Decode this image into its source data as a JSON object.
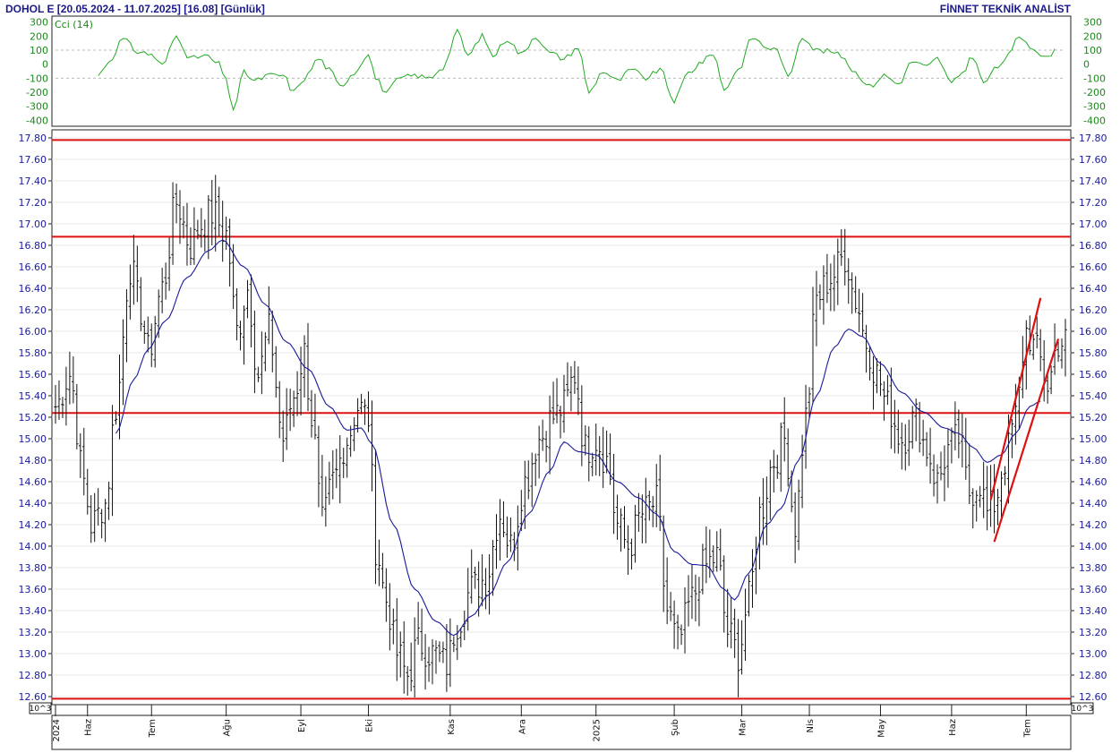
{
  "header": {
    "ticker_info": "DOHOL E  [20.05.2024 - 11.07.2025]  [16.08]  [Günlük]",
    "brand": "FİNNET TEKNİK ANALİST"
  },
  "indicator": {
    "label": "Cci (14)",
    "ticks": [
      "300",
      "200",
      "100",
      "0",
      "-100",
      "-200",
      "-300",
      "-400"
    ],
    "tick_values": [
      300,
      200,
      100,
      0,
      -100,
      -200,
      -300,
      -400
    ],
    "color": "#22aa22"
  },
  "unit_label": "10^3",
  "colors": {
    "price_bars": "#111111",
    "moving_average": "#1a1a9a",
    "levels": "#dd1111",
    "channel": "#dd1111",
    "grid": "#e8e8e8",
    "axis_text": "#1a1aa0"
  },
  "chart_data": {
    "type": "bar",
    "title": "DOHOL E",
    "date_range": "20.05.2024 - 11.07.2025",
    "interval": "Günlük",
    "last_close": 16.08,
    "y_ticks": [
      "17.80",
      "17.60",
      "17.40",
      "17.20",
      "17.00",
      "16.80",
      "16.60",
      "16.40",
      "16.20",
      "16.00",
      "15.80",
      "15.60",
      "15.40",
      "15.20",
      "15.00",
      "14.80",
      "14.60",
      "14.40",
      "14.20",
      "14.00",
      "13.80",
      "13.60",
      "13.40",
      "13.20",
      "13.00",
      "12.80",
      "12.60"
    ],
    "ylim": [
      12.55,
      17.85
    ],
    "x_labels": [
      {
        "label": "2024",
        "index": 0
      },
      {
        "label": "Haz",
        "index": 9
      },
      {
        "label": "Tem",
        "index": 27
      },
      {
        "label": "Ağu",
        "index": 48
      },
      {
        "label": "Eyl",
        "index": 69
      },
      {
        "label": "Eki",
        "index": 88
      },
      {
        "label": "Kas",
        "index": 111
      },
      {
        "label": "Ara",
        "index": 131
      },
      {
        "label": "2025",
        "index": 152
      },
      {
        "label": "Şub",
        "index": 174
      },
      {
        "label": "Mar",
        "index": 193
      },
      {
        "label": "Nis",
        "index": 212
      },
      {
        "label": "May",
        "index": 232
      },
      {
        "label": "Haz",
        "index": 252
      },
      {
        "label": "Tem",
        "index": 273
      }
    ],
    "horizontal_levels": [
      17.78,
      16.88,
      15.24,
      12.58
    ],
    "channel_lines": [
      {
        "from": {
          "index": 263,
          "value": 14.43
        },
        "to": {
          "index": 277,
          "value": 16.31
        }
      },
      {
        "from": {
          "index": 264,
          "value": 14.04
        },
        "to": {
          "index": 282,
          "value": 15.93
        }
      }
    ],
    "price_anchors": [
      {
        "i": 0,
        "v": 15.3
      },
      {
        "i": 4,
        "v": 15.6
      },
      {
        "i": 8,
        "v": 14.6
      },
      {
        "i": 10,
        "v": 14.2
      },
      {
        "i": 14,
        "v": 14.4
      },
      {
        "i": 17,
        "v": 15.3
      },
      {
        "i": 21,
        "v": 16.6
      },
      {
        "i": 24,
        "v": 16.2
      },
      {
        "i": 26,
        "v": 15.8
      },
      {
        "i": 30,
        "v": 16.4
      },
      {
        "i": 34,
        "v": 17.2
      },
      {
        "i": 38,
        "v": 16.8
      },
      {
        "i": 41,
        "v": 17.0
      },
      {
        "i": 44,
        "v": 17.1
      },
      {
        "i": 48,
        "v": 16.9
      },
      {
        "i": 51,
        "v": 16.0
      },
      {
        "i": 54,
        "v": 16.4
      },
      {
        "i": 57,
        "v": 15.6
      },
      {
        "i": 60,
        "v": 16.0
      },
      {
        "i": 64,
        "v": 15.0
      },
      {
        "i": 67,
        "v": 15.4
      },
      {
        "i": 70,
        "v": 15.8
      },
      {
        "i": 72,
        "v": 15.2
      },
      {
        "i": 75,
        "v": 14.2
      },
      {
        "i": 78,
        "v": 14.6
      },
      {
        "i": 82,
        "v": 15.0
      },
      {
        "i": 85,
        "v": 15.3
      },
      {
        "i": 88,
        "v": 15.2
      },
      {
        "i": 90,
        "v": 14.0
      },
      {
        "i": 93,
        "v": 13.5
      },
      {
        "i": 96,
        "v": 13.0
      },
      {
        "i": 99,
        "v": 12.8
      },
      {
        "i": 102,
        "v": 13.1
      },
      {
        "i": 106,
        "v": 13.0
      },
      {
        "i": 110,
        "v": 12.9
      },
      {
        "i": 113,
        "v": 13.3
      },
      {
        "i": 117,
        "v": 13.6
      },
      {
        "i": 121,
        "v": 13.7
      },
      {
        "i": 125,
        "v": 14.3
      },
      {
        "i": 128,
        "v": 14.0
      },
      {
        "i": 132,
        "v": 14.6
      },
      {
        "i": 136,
        "v": 15.0
      },
      {
        "i": 140,
        "v": 15.2
      },
      {
        "i": 143,
        "v": 15.3
      },
      {
        "i": 146,
        "v": 15.6
      },
      {
        "i": 149,
        "v": 14.9
      },
      {
        "i": 152,
        "v": 15.0
      },
      {
        "i": 155,
        "v": 14.8
      },
      {
        "i": 158,
        "v": 14.2
      },
      {
        "i": 161,
        "v": 14.0
      },
      {
        "i": 165,
        "v": 14.3
      },
      {
        "i": 169,
        "v": 14.4
      },
      {
        "i": 172,
        "v": 13.4
      },
      {
        "i": 175,
        "v": 13.1
      },
      {
        "i": 179,
        "v": 13.5
      },
      {
        "i": 182,
        "v": 13.8
      },
      {
        "i": 186,
        "v": 13.9
      },
      {
        "i": 189,
        "v": 13.2
      },
      {
        "i": 192,
        "v": 13.0
      },
      {
        "i": 195,
        "v": 13.5
      },
      {
        "i": 198,
        "v": 14.3
      },
      {
        "i": 202,
        "v": 14.8
      },
      {
        "i": 205,
        "v": 15.0
      },
      {
        "i": 208,
        "v": 14.2
      },
      {
        "i": 211,
        "v": 15.2
      },
      {
        "i": 214,
        "v": 16.3
      },
      {
        "i": 218,
        "v": 16.5
      },
      {
        "i": 222,
        "v": 16.7
      },
      {
        "i": 225,
        "v": 16.3
      },
      {
        "i": 228,
        "v": 15.9
      },
      {
        "i": 231,
        "v": 15.6
      },
      {
        "i": 234,
        "v": 15.3
      },
      {
        "i": 238,
        "v": 15.0
      },
      {
        "i": 242,
        "v": 15.2
      },
      {
        "i": 245,
        "v": 14.9
      },
      {
        "i": 248,
        "v": 14.6
      },
      {
        "i": 251,
        "v": 14.9
      },
      {
        "i": 254,
        "v": 15.0
      },
      {
        "i": 257,
        "v": 14.5
      },
      {
        "i": 260,
        "v": 14.6
      },
      {
        "i": 262,
        "v": 14.3
      },
      {
        "i": 264,
        "v": 14.4
      },
      {
        "i": 267,
        "v": 14.8
      },
      {
        "i": 270,
        "v": 15.2
      },
      {
        "i": 273,
        "v": 16.0
      },
      {
        "i": 276,
        "v": 15.8
      },
      {
        "i": 279,
        "v": 15.5
      },
      {
        "i": 282,
        "v": 15.9
      }
    ],
    "ma_anchors": [
      {
        "i": 17,
        "v": 15.05
      },
      {
        "i": 22,
        "v": 15.55
      },
      {
        "i": 26,
        "v": 15.83
      },
      {
        "i": 31,
        "v": 16.1
      },
      {
        "i": 37,
        "v": 16.5
      },
      {
        "i": 43,
        "v": 16.75
      },
      {
        "i": 47,
        "v": 16.85
      },
      {
        "i": 53,
        "v": 16.6
      },
      {
        "i": 59,
        "v": 16.25
      },
      {
        "i": 65,
        "v": 15.9
      },
      {
        "i": 71,
        "v": 15.65
      },
      {
        "i": 77,
        "v": 15.3
      },
      {
        "i": 82,
        "v": 15.08
      },
      {
        "i": 86,
        "v": 15.1
      },
      {
        "i": 89,
        "v": 14.95
      },
      {
        "i": 95,
        "v": 14.2
      },
      {
        "i": 101,
        "v": 13.6
      },
      {
        "i": 107,
        "v": 13.3
      },
      {
        "i": 112,
        "v": 13.17
      },
      {
        "i": 117,
        "v": 13.35
      },
      {
        "i": 122,
        "v": 13.55
      },
      {
        "i": 127,
        "v": 13.85
      },
      {
        "i": 133,
        "v": 14.3
      },
      {
        "i": 139,
        "v": 14.7
      },
      {
        "i": 143,
        "v": 14.97
      },
      {
        "i": 147,
        "v": 14.88
      },
      {
        "i": 152,
        "v": 14.85
      },
      {
        "i": 158,
        "v": 14.6
      },
      {
        "i": 164,
        "v": 14.45
      },
      {
        "i": 169,
        "v": 14.3
      },
      {
        "i": 174,
        "v": 13.95
      },
      {
        "i": 179,
        "v": 13.83
      },
      {
        "i": 183,
        "v": 13.82
      },
      {
        "i": 188,
        "v": 13.6
      },
      {
        "i": 191,
        "v": 13.5
      },
      {
        "i": 195,
        "v": 13.75
      },
      {
        "i": 200,
        "v": 14.2
      },
      {
        "i": 204,
        "v": 14.35
      },
      {
        "i": 209,
        "v": 14.8
      },
      {
        "i": 214,
        "v": 15.4
      },
      {
        "i": 219,
        "v": 15.85
      },
      {
        "i": 223,
        "v": 16.02
      },
      {
        "i": 227,
        "v": 15.95
      },
      {
        "i": 232,
        "v": 15.7
      },
      {
        "i": 238,
        "v": 15.43
      },
      {
        "i": 244,
        "v": 15.25
      },
      {
        "i": 250,
        "v": 15.1
      },
      {
        "i": 254,
        "v": 15.05
      },
      {
        "i": 258,
        "v": 14.92
      },
      {
        "i": 262,
        "v": 14.78
      },
      {
        "i": 266,
        "v": 14.85
      },
      {
        "i": 270,
        "v": 15.05
      },
      {
        "i": 274,
        "v": 15.3
      },
      {
        "i": 277,
        "v": 15.35
      }
    ],
    "cci_anchors": [
      {
        "i": 12,
        "v": -80
      },
      {
        "i": 15,
        "v": 20
      },
      {
        "i": 19,
        "v": 180
      },
      {
        "i": 23,
        "v": 90
      },
      {
        "i": 27,
        "v": 70
      },
      {
        "i": 30,
        "v": -10
      },
      {
        "i": 34,
        "v": 200
      },
      {
        "i": 38,
        "v": 40
      },
      {
        "i": 42,
        "v": 60
      },
      {
        "i": 46,
        "v": 0
      },
      {
        "i": 48,
        "v": -120
      },
      {
        "i": 50,
        "v": -320
      },
      {
        "i": 53,
        "v": -60
      },
      {
        "i": 56,
        "v": -120
      },
      {
        "i": 60,
        "v": -80
      },
      {
        "i": 64,
        "v": -80
      },
      {
        "i": 67,
        "v": -200
      },
      {
        "i": 70,
        "v": -100
      },
      {
        "i": 74,
        "v": 40
      },
      {
        "i": 77,
        "v": -40
      },
      {
        "i": 80,
        "v": -160
      },
      {
        "i": 84,
        "v": -60
      },
      {
        "i": 88,
        "v": 80
      },
      {
        "i": 90,
        "v": -100
      },
      {
        "i": 93,
        "v": -200
      },
      {
        "i": 97,
        "v": -100
      },
      {
        "i": 101,
        "v": -80
      },
      {
        "i": 105,
        "v": -100
      },
      {
        "i": 109,
        "v": -20
      },
      {
        "i": 113,
        "v": 230
      },
      {
        "i": 116,
        "v": 60
      },
      {
        "i": 120,
        "v": 200
      },
      {
        "i": 123,
        "v": 60
      },
      {
        "i": 127,
        "v": 180
      },
      {
        "i": 131,
        "v": 70
      },
      {
        "i": 135,
        "v": 200
      },
      {
        "i": 139,
        "v": 80
      },
      {
        "i": 143,
        "v": 40
      },
      {
        "i": 147,
        "v": 120
      },
      {
        "i": 150,
        "v": -200
      },
      {
        "i": 154,
        "v": -50
      },
      {
        "i": 158,
        "v": -120
      },
      {
        "i": 162,
        "v": -40
      },
      {
        "i": 166,
        "v": -100
      },
      {
        "i": 170,
        "v": -40
      },
      {
        "i": 174,
        "v": -260
      },
      {
        "i": 178,
        "v": -60
      },
      {
        "i": 182,
        "v": 20
      },
      {
        "i": 185,
        "v": 80
      },
      {
        "i": 188,
        "v": -180
      },
      {
        "i": 192,
        "v": -40
      },
      {
        "i": 196,
        "v": 190
      },
      {
        "i": 200,
        "v": 120
      },
      {
        "i": 203,
        "v": 100
      },
      {
        "i": 206,
        "v": -100
      },
      {
        "i": 210,
        "v": 200
      },
      {
        "i": 214,
        "v": 100
      },
      {
        "i": 218,
        "v": 90
      },
      {
        "i": 221,
        "v": 60
      },
      {
        "i": 225,
        "v": -60
      },
      {
        "i": 229,
        "v": -160
      },
      {
        "i": 233,
        "v": -80
      },
      {
        "i": 237,
        "v": -140
      },
      {
        "i": 241,
        "v": 20
      },
      {
        "i": 245,
        "v": -20
      },
      {
        "i": 248,
        "v": 40
      },
      {
        "i": 252,
        "v": -140
      },
      {
        "i": 255,
        "v": -60
      },
      {
        "i": 258,
        "v": 60
      },
      {
        "i": 261,
        "v": -140
      },
      {
        "i": 264,
        "v": -40
      },
      {
        "i": 268,
        "v": 60
      },
      {
        "i": 271,
        "v": 200
      },
      {
        "i": 275,
        "v": 120
      },
      {
        "i": 278,
        "v": 40
      },
      {
        "i": 281,
        "v": 90
      }
    ]
  }
}
